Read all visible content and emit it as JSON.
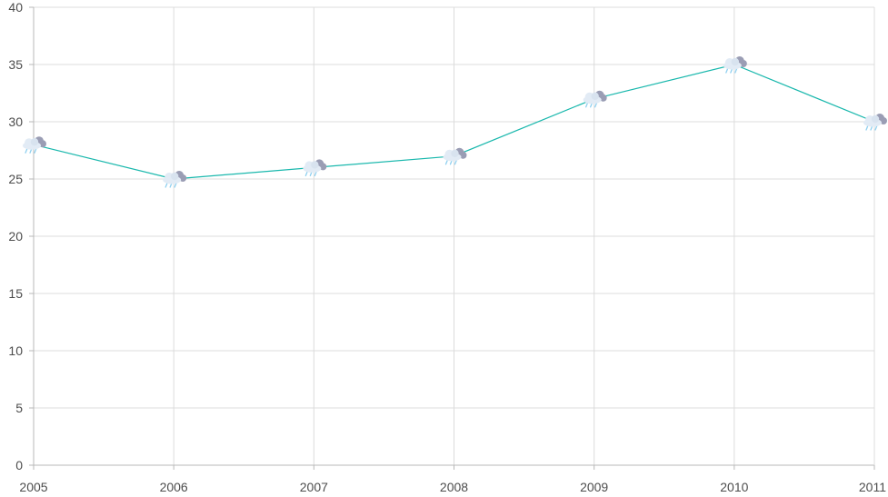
{
  "chart_data": {
    "type": "line",
    "title": "",
    "xlabel": "",
    "ylabel": "",
    "categories": [
      "2005",
      "2006",
      "2007",
      "2008",
      "2009",
      "2010",
      "2011"
    ],
    "series": [
      {
        "values": [
          28,
          25,
          26,
          27,
          32,
          35,
          30
        ],
        "color": "#1ab8ad",
        "marker": "rain-cloud-icon"
      }
    ],
    "ylim": [
      0,
      40
    ],
    "yticks": [
      "0",
      "5",
      "10",
      "15",
      "20",
      "25",
      "30",
      "35",
      "40"
    ],
    "grid": true,
    "legend": "none"
  }
}
